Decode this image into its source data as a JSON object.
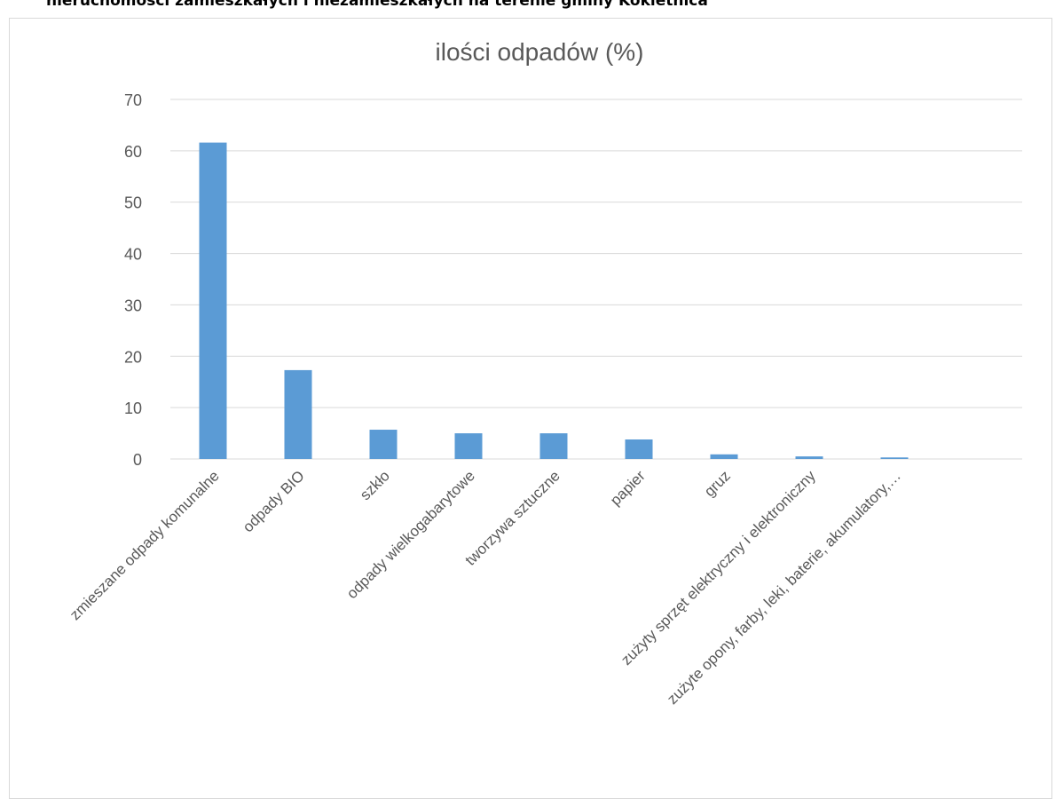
{
  "document": {
    "heading": "nieruchomości zamieszkałych i niezamieszkałych na terenie gminy Kokietnica"
  },
  "chart_data": {
    "type": "bar",
    "title": "ilości odpadów (%)",
    "categories": [
      "zmieszane odpady komunalne",
      "odpady BIO",
      "szkło",
      "odpady wielkogabarytowe",
      "tworzywa sztuczne",
      "papier",
      "gruz",
      "zużyty sprzęt elektryczny i elektroniczny",
      "zużyte opony, farby, leki, baterie, akumulatory,…"
    ],
    "values": [
      61.6,
      17.3,
      5.7,
      5.0,
      5.0,
      3.8,
      0.9,
      0.5,
      0.3
    ],
    "ylim": [
      0,
      70
    ],
    "yticks": [
      0,
      10,
      20,
      30,
      40,
      50,
      60,
      70
    ],
    "grid": true,
    "bar_color": "#5b9bd5",
    "gridline_color": "#d9d9d9"
  }
}
